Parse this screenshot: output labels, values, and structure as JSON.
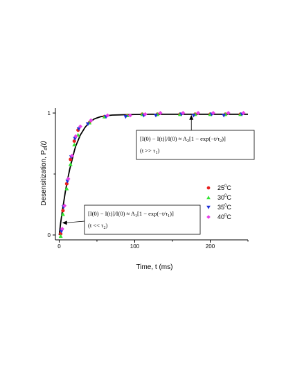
{
  "chart_data": {
    "type": "scatter",
    "xlabel": "Time,  t  (ms)",
    "ylabel": "Desensitization,  P",
    "ylabel_sub": "d",
    "ylabel_suffix": "(t)",
    "xlim": [
      -5,
      250
    ],
    "ylim": [
      -0.04,
      1.04
    ],
    "x_ticks": [
      0,
      100,
      200
    ],
    "y_ticks": [
      0,
      1
    ],
    "legend_position": "right",
    "series": [
      {
        "name": "25",
        "marker": "circle",
        "color": "#e8201e",
        "x": [
          2,
          5,
          10,
          15,
          20,
          25,
          40,
          60,
          90,
          110,
          130,
          160,
          180,
          200,
          220,
          240
        ],
        "y": [
          0.01,
          0.2,
          0.42,
          0.62,
          0.77,
          0.86,
          0.92,
          0.97,
          0.98,
          0.99,
          0.99,
          0.99,
          0.99,
          0.99,
          0.99,
          0.99
        ]
      },
      {
        "name": "30",
        "marker": "triangle-up",
        "color": "#33e433",
        "x": [
          2,
          5,
          10,
          15,
          20,
          25,
          40,
          60,
          90,
          110,
          130,
          160,
          180,
          200,
          220,
          240
        ],
        "y": [
          -0.01,
          0.17,
          0.38,
          0.58,
          0.74,
          0.82,
          0.92,
          0.97,
          0.98,
          0.99,
          0.99,
          0.99,
          0.99,
          0.99,
          0.99,
          0.99
        ]
      },
      {
        "name": "35",
        "marker": "triangle-down",
        "color": "#1f2fd8",
        "x": [
          3,
          6,
          11,
          16,
          21,
          26,
          38,
          62,
          88,
          112,
          128,
          162,
          178,
          202,
          218,
          242
        ],
        "y": [
          0.03,
          0.23,
          0.44,
          0.64,
          0.79,
          0.87,
          0.91,
          0.97,
          0.97,
          0.98,
          0.98,
          0.99,
          0.98,
          0.99,
          0.98,
          0.99
        ]
      },
      {
        "name": "40",
        "marker": "diamond",
        "color": "#e83fe8",
        "x": [
          4,
          7,
          12,
          17,
          22,
          28,
          42,
          64,
          94,
          114,
          134,
          164,
          184,
          204,
          224,
          244
        ],
        "y": [
          0.05,
          0.24,
          0.46,
          0.65,
          0.81,
          0.89,
          0.94,
          0.98,
          0.98,
          0.99,
          1.0,
          1.0,
          1.0,
          1.0,
          1.0,
          1.0
        ]
      }
    ],
    "fit_curve": {
      "label": "",
      "x": [
        0,
        2,
        4,
        6,
        8,
        10,
        12,
        14,
        16,
        18,
        20,
        22,
        24,
        26,
        28,
        30,
        34,
        38,
        42,
        46,
        50,
        55,
        60,
        65,
        70,
        80,
        90,
        100,
        120,
        150,
        180,
        210,
        250
      ],
      "y": [
        0.0,
        0.1,
        0.19,
        0.27,
        0.35,
        0.42,
        0.48,
        0.54,
        0.59,
        0.64,
        0.69,
        0.73,
        0.76,
        0.79,
        0.82,
        0.84,
        0.88,
        0.91,
        0.93,
        0.95,
        0.96,
        0.97,
        0.975,
        0.98,
        0.983,
        0.985,
        0.987,
        0.988,
        0.99,
        0.99,
        0.99,
        0.99,
        0.99
      ]
    },
    "legend_suffix": "C",
    "annotations": [
      {
        "line1": "[I(0) − I(t)]/I(0) ≈ A",
        "sub1": "2",
        "rest1": "[1 − exp(−t/τ",
        "sub1b": "2",
        "end1": ")]",
        "line2": "(t >> τ",
        "sub2": "1",
        "end2": ")",
        "arrow_to": [
          175,
          0.99
        ]
      },
      {
        "line1": "[I(0) − I(t)]/I(0) ≈ A",
        "sub1": "1",
        "rest1": "[1 − exp(−t/τ",
        "sub1b": "1",
        "end1": ")]",
        "line2": "(t << τ",
        "sub2": "2",
        "end2": ")",
        "arrow_to": [
          3,
          0.1
        ]
      }
    ]
  }
}
